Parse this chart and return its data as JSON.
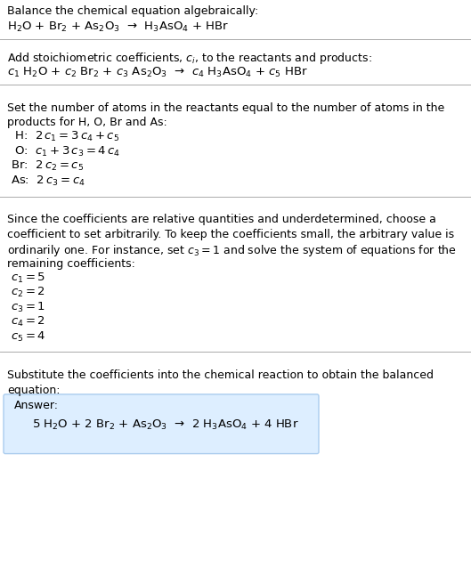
{
  "title": "Balance the chemical equation algebraically:",
  "equation_line": "H$_2$O + Br$_2$ + As$_2$O$_3$  →  H$_3$AsO$_4$ + HBr",
  "section2_header": "Add stoichiometric coefficients, $c_i$, to the reactants and products:",
  "section2_eq": "$c_1$ H$_2$O + $c_2$ Br$_2$ + $c_3$ As$_2$O$_3$  →  $c_4$ H$_3$AsO$_4$ + $c_5$ HBr",
  "section3_header_line1": "Set the number of atoms in the reactants equal to the number of atoms in the",
  "section3_header_line2": "products for H, O, Br and As:",
  "section3_lines": [
    " H:  $2\\,c_1 = 3\\,c_4 + c_5$",
    " O:  $c_1 + 3\\,c_3 = 4\\,c_4$",
    "Br:  $2\\,c_2 = c_5$",
    "As:  $2\\,c_3 = c_4$"
  ],
  "section4_header_line1": "Since the coefficients are relative quantities and underdetermined, choose a",
  "section4_header_line2": "coefficient to set arbitrarily. To keep the coefficients small, the arbitrary value is",
  "section4_header_line3": "ordinarily one. For instance, set $c_3 = 1$ and solve the system of equations for the",
  "section4_header_line4": "remaining coefficients:",
  "section4_lines": [
    "$c_1 = 5$",
    "$c_2 = 2$",
    "$c_3 = 1$",
    "$c_4 = 2$",
    "$c_5 = 4$"
  ],
  "section5_header_line1": "Substitute the coefficients into the chemical reaction to obtain the balanced",
  "section5_header_line2": "equation:",
  "answer_label": "Answer:",
  "answer_eq": "5 H$_2$O + 2 Br$_2$ + As$_2$O$_3$  →  2 H$_3$AsO$_4$ + 4 HBr",
  "bg_color": "#ffffff",
  "text_color": "#000000",
  "line_color": "#aaaaaa",
  "answer_box_facecolor": "#ddeeff",
  "answer_box_edgecolor": "#aaccee",
  "font_size": 9.0
}
